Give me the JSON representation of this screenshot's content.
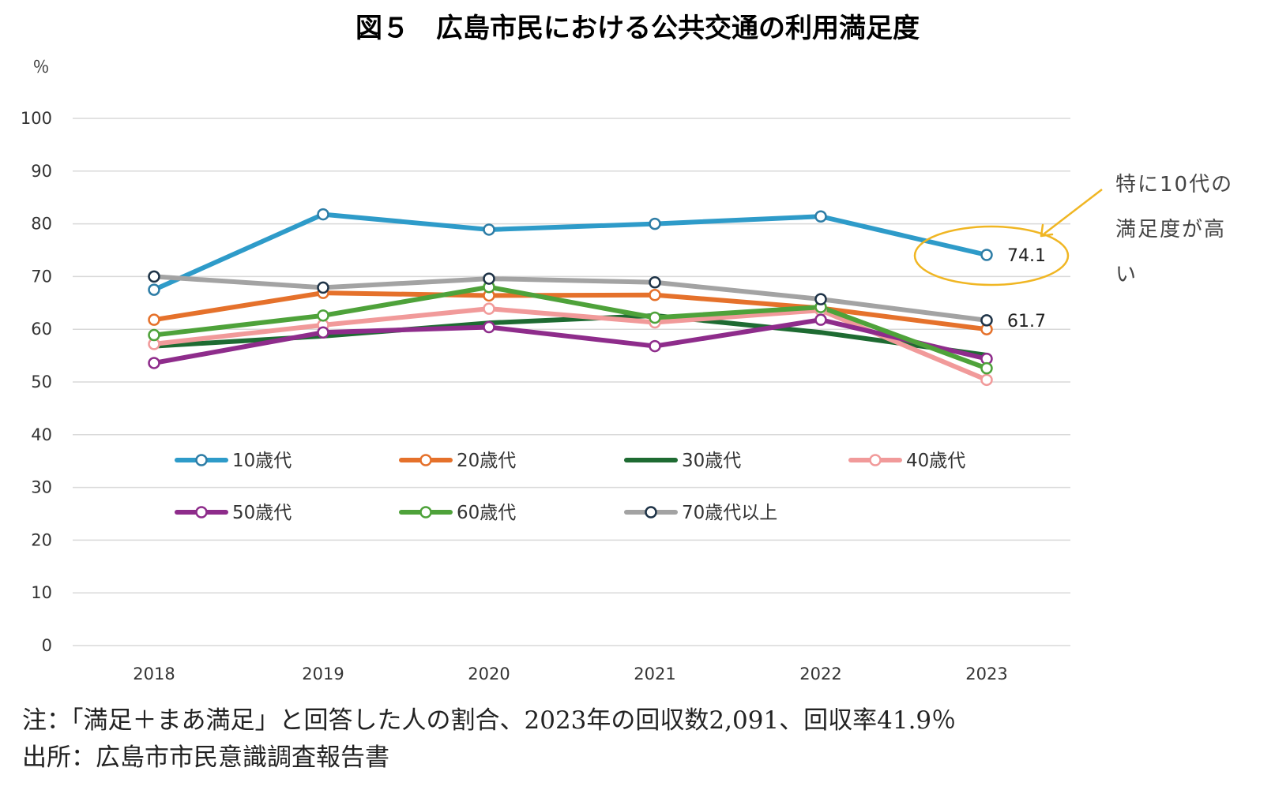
{
  "chart_data": {
    "type": "line",
    "title": "図５　広島市民における公共交通の利用満足度",
    "ylabel": "％",
    "ylim": [
      0,
      100
    ],
    "yticks": [
      0,
      10,
      20,
      30,
      40,
      50,
      60,
      70,
      80,
      90,
      100
    ],
    "x": [
      "2018",
      "2019",
      "2020",
      "2021",
      "2022",
      "2023"
    ],
    "grid": true,
    "legend_position": "inside-lower",
    "series": [
      {
        "name": "10歳代",
        "color": "#2e9bc9",
        "marker_stroke": "#2e7da6",
        "values": [
          67.5,
          81.8,
          78.9,
          80.0,
          81.4,
          74.1
        ]
      },
      {
        "name": "20歳代",
        "color": "#e5712b",
        "marker_stroke": "#e5712b",
        "values": [
          61.8,
          66.9,
          66.4,
          66.5,
          64.0,
          60.0
        ]
      },
      {
        "name": "30歳代",
        "color": "#1e6b32",
        "marker_stroke": null,
        "values": [
          56.8,
          58.7,
          61.2,
          62.6,
          59.4,
          55.1
        ]
      },
      {
        "name": "40歳代",
        "color": "#f19a9a",
        "marker_stroke": "#f19a9a",
        "values": [
          57.2,
          60.8,
          63.9,
          61.3,
          63.6,
          50.4
        ]
      },
      {
        "name": "50歳代",
        "color": "#8e2c8b",
        "marker_stroke": "#8e2c8b",
        "values": [
          53.6,
          59.4,
          60.4,
          56.8,
          61.8,
          54.4
        ]
      },
      {
        "name": "60歳代",
        "color": "#4ea23a",
        "marker_stroke": "#4ea23a",
        "values": [
          58.9,
          62.6,
          68.0,
          62.2,
          64.2,
          52.6
        ]
      },
      {
        "name": "70歳代以上",
        "color": "#a3a3a3",
        "marker_stroke": "#1e3347",
        "values": [
          70.0,
          67.9,
          69.6,
          68.9,
          65.7,
          61.7
        ]
      }
    ],
    "data_labels": [
      {
        "series": "10歳代",
        "x": "2023",
        "text": "74.1"
      },
      {
        "series": "70歳代以上",
        "x": "2023",
        "text": "61.7"
      }
    ],
    "annotation": {
      "lines": [
        "特に10代の",
        "満足度が高",
        "い"
      ],
      "highlight_color": "#f0b623",
      "target_series": "10歳代",
      "target_x": "2023"
    }
  },
  "notes": {
    "note": "注：「満足＋まあ満足」と回答した人の割合、2023年の回収数2,091、回収率41.9％",
    "source": "出所：広島市市民意識調査報告書"
  }
}
